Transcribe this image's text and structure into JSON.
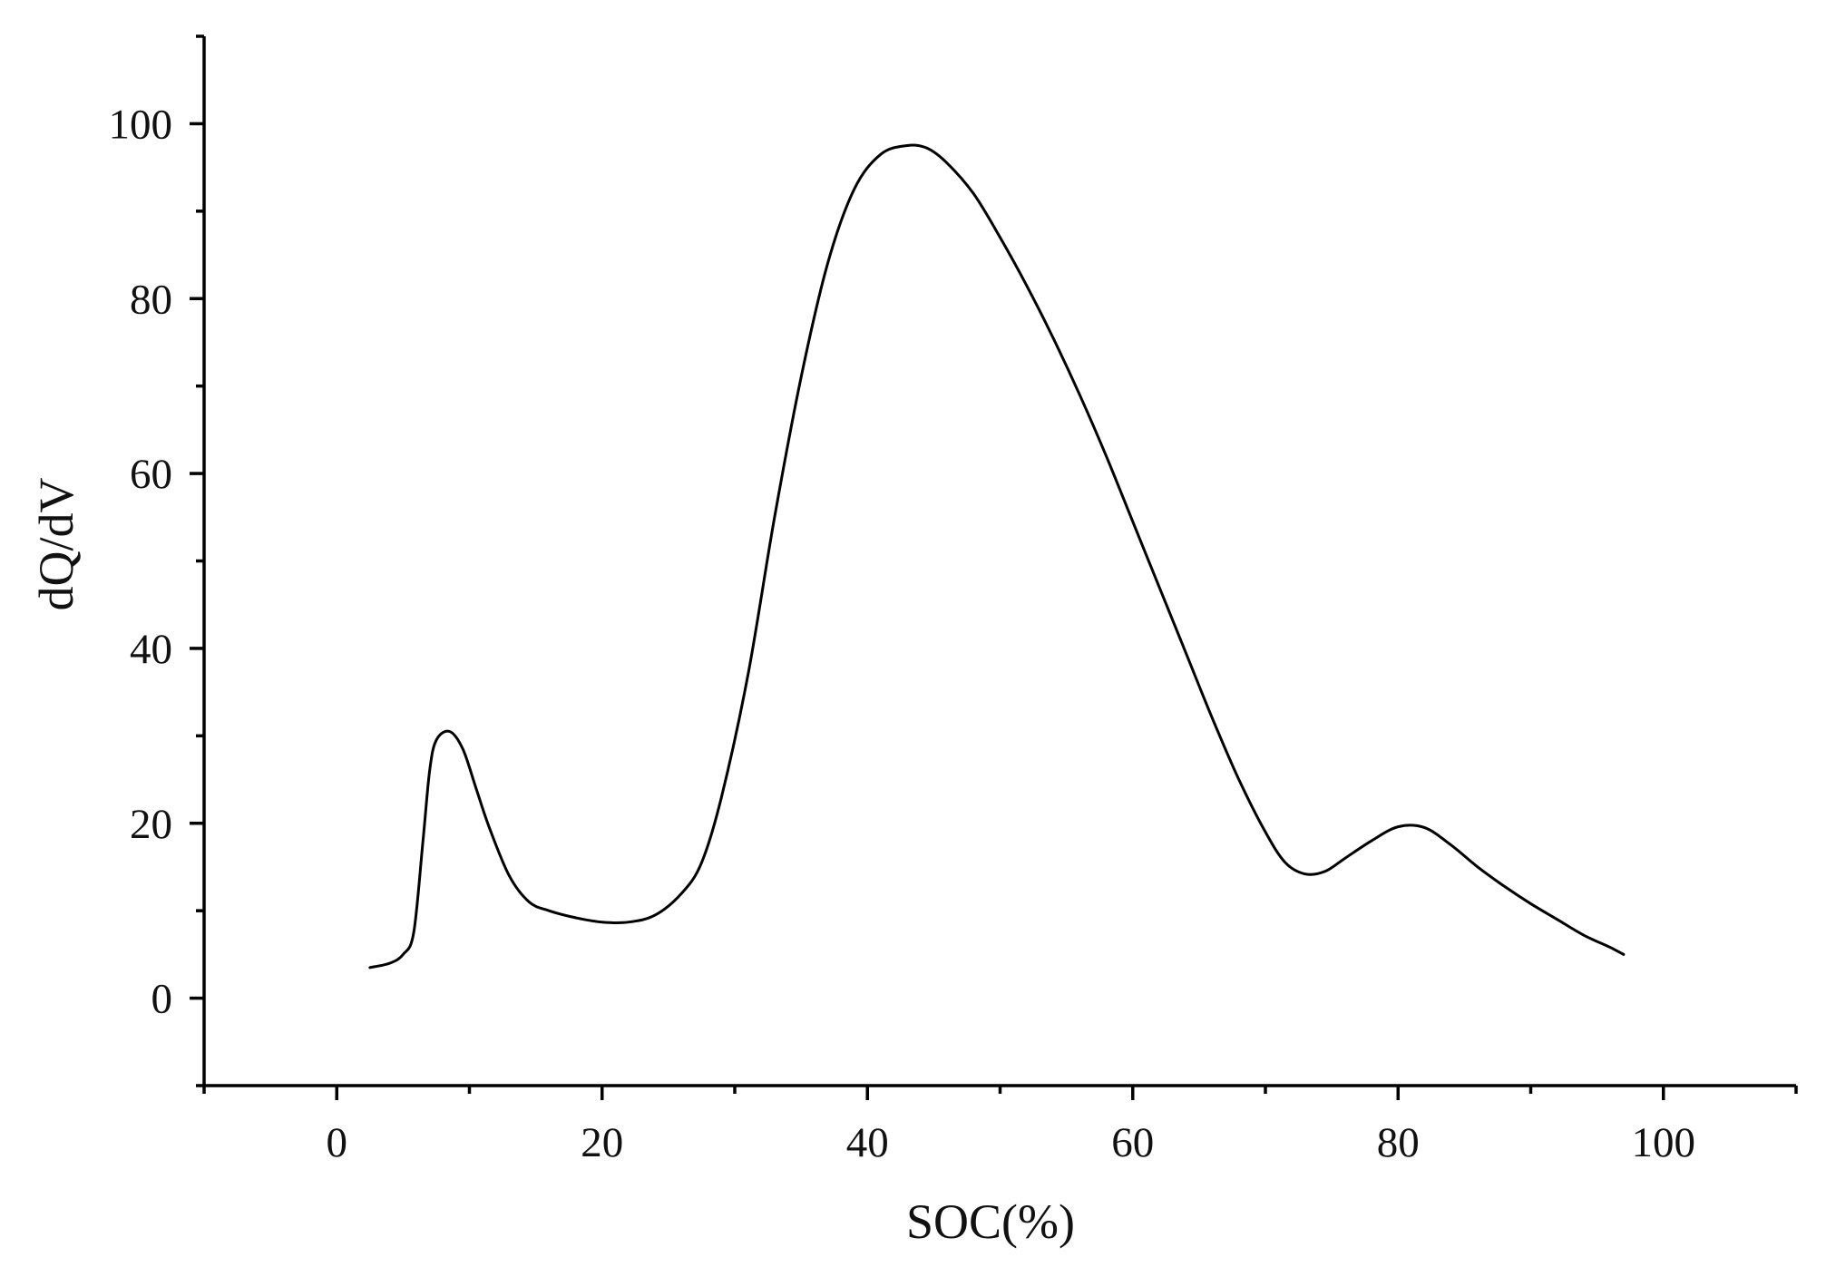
{
  "chart_data": {
    "type": "line",
    "title": "",
    "xlabel": "SOC(%)",
    "ylabel": "dQ/dV",
    "xlim": [
      -10,
      110
    ],
    "ylim": [
      -10,
      110
    ],
    "xticks": [
      0,
      20,
      40,
      60,
      80,
      100
    ],
    "yticks": [
      0,
      20,
      40,
      60,
      80,
      100
    ],
    "xticklabels": [
      "0",
      "20",
      "40",
      "60",
      "80",
      "100"
    ],
    "yticklabels": [
      "0",
      "20",
      "40",
      "60",
      "80",
      "100"
    ],
    "minor_step": 10,
    "grid": false,
    "legend": "none",
    "line_color": "#000000",
    "series": [
      {
        "x": [
          2.5,
          4,
          5,
          5.8,
          6.5,
          7,
          7.5,
          8.5,
          9.5,
          10.5,
          11.5,
          13,
          14.5,
          16,
          18,
          20,
          22,
          24,
          26,
          27.5,
          29,
          31,
          33,
          35,
          37,
          39,
          41,
          43,
          44.5,
          46,
          48,
          50,
          52,
          54,
          56,
          58,
          60,
          62,
          64,
          66,
          68,
          70,
          71.5,
          73,
          74.5,
          76,
          78,
          80,
          82,
          84,
          86,
          88,
          90,
          92,
          94,
          96,
          97
        ],
        "y": [
          3.5,
          4,
          5,
          7.5,
          18,
          26,
          29.5,
          30.5,
          28.5,
          24,
          19.5,
          14,
          11,
          10,
          9.2,
          8.7,
          8.7,
          9.5,
          12,
          15.5,
          23,
          37,
          55,
          71,
          84,
          92.5,
          96.5,
          97.5,
          97.2,
          95.5,
          92,
          87,
          81.5,
          75.5,
          69,
          62,
          54.5,
          47,
          39.5,
          32,
          25,
          19,
          15.5,
          14.2,
          14.5,
          16,
          18,
          19.6,
          19.5,
          17.5,
          15,
          12.8,
          10.8,
          9,
          7.2,
          5.8,
          5
        ]
      }
    ]
  }
}
